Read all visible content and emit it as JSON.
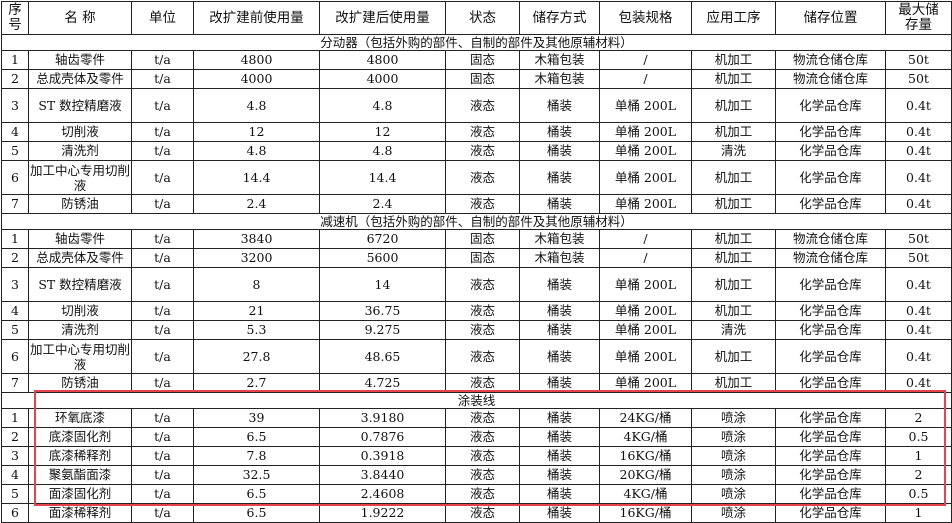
{
  "table": {
    "headers": [
      "序\n号",
      "名  称",
      "单位",
      "改扩建前使用量",
      "改扩建后使用量",
      "状态",
      "储存方式",
      "包装规格",
      "应用工序",
      "储存位置",
      "最大储\n存量"
    ],
    "sections": [
      {
        "title": "分动器（包括外购的部件、自制的部件及其他原辅材料）",
        "rows": [
          [
            "1",
            "轴齿零件",
            "t/a",
            "4800",
            "4800",
            "固态",
            "木箱包装",
            "/",
            "机加工",
            "物流仓储仓库",
            "50t"
          ],
          [
            "2",
            "总成壳体及零件",
            "t/a",
            "4000",
            "4000",
            "固态",
            "木箱包装",
            "/",
            "机加工",
            "物流仓储仓库",
            "50t"
          ],
          [
            "3",
            "ST 数控精磨液",
            "t/a",
            "4.8",
            "4.8",
            "液态",
            "桶装",
            "单桶 200L",
            "机加工",
            "化学品仓库",
            "0.4t"
          ],
          [
            "4",
            "切削液",
            "t/a",
            "12",
            "12",
            "液态",
            "桶装",
            "单桶 200L",
            "机加工",
            "化学品仓库",
            "0.4t"
          ],
          [
            "5",
            "清洗剂",
            "t/a",
            "4.8",
            "4.8",
            "液态",
            "桶装",
            "单桶 200L",
            "清洗",
            "化学品仓库",
            "0.4t"
          ],
          [
            "6",
            "加工中心专用切削液",
            "t/a",
            "14.4",
            "14.4",
            "液态",
            "桶装",
            "单桶 200L",
            "机加工",
            "化学品仓库",
            "0.4t"
          ],
          [
            "7",
            "防锈油",
            "t/a",
            "2.4",
            "2.4",
            "液态",
            "桶装",
            "单桶 200L",
            "机加工",
            "化学品仓库",
            "0.4t"
          ]
        ]
      },
      {
        "title": "减速机（包括外购的部件、自制的部件及其他原辅材料）",
        "rows": [
          [
            "1",
            "轴齿零件",
            "t/a",
            "3840",
            "6720",
            "固态",
            "木箱包装",
            "/",
            "机加工",
            "物流仓储仓库",
            "50t"
          ],
          [
            "2",
            "总成壳体及零件",
            "t/a",
            "3200",
            "5600",
            "固态",
            "木箱包装",
            "/",
            "机加工",
            "物流仓储仓库",
            "50t"
          ],
          [
            "3",
            "ST 数控精磨液",
            "t/a",
            "8",
            "14",
            "液态",
            "桶装",
            "单桶 200L",
            "机加工",
            "化学品仓库",
            "0.4t"
          ],
          [
            "4",
            "切削液",
            "t/a",
            "21",
            "36.75",
            "液态",
            "桶装",
            "单桶 200L",
            "机加工",
            "化学品仓库",
            "0.4t"
          ],
          [
            "5",
            "清洗剂",
            "t/a",
            "5.3",
            "9.275",
            "液态",
            "桶装",
            "单桶 200L",
            "清洗",
            "化学品仓库",
            "0.4t"
          ],
          [
            "6",
            "加工中心专用切削液",
            "t/a",
            "27.8",
            "48.65",
            "液态",
            "桶装",
            "单桶 200L",
            "机加工",
            "化学品仓库",
            "0.4t"
          ],
          [
            "7",
            "防锈油",
            "t/a",
            "2.7",
            "4.725",
            "液态",
            "桶装",
            "单桶 200L",
            "机加工",
            "化学品仓库",
            "0.4t"
          ]
        ]
      },
      {
        "title": "涂装线",
        "rows": [
          [
            "1",
            "环氧底漆",
            "t/a",
            "39",
            "3.9180",
            "液态",
            "桶装",
            "24KG/桶",
            "喷涂",
            "化学品仓库",
            "2"
          ],
          [
            "2",
            "底漆固化剂",
            "t/a",
            "6.5",
            "0.7876",
            "液态",
            "桶装",
            "4KG/桶",
            "喷涂",
            "化学品仓库",
            "0.5"
          ],
          [
            "3",
            "底漆稀释剂",
            "t/a",
            "7.8",
            "0.3918",
            "液态",
            "桶装",
            "16KG/桶",
            "喷涂",
            "化学品仓库",
            "1"
          ],
          [
            "4",
            "聚氨酯面漆",
            "t/a",
            "32.5",
            "3.8440",
            "液态",
            "桶装",
            "20KG/桶",
            "喷涂",
            "化学品仓库",
            "2"
          ],
          [
            "5",
            "面漆固化剂",
            "t/a",
            "6.5",
            "2.4608",
            "液态",
            "桶装",
            "4KG/桶",
            "喷涂",
            "化学品仓库",
            "0.5"
          ],
          [
            "6",
            "面漆稀释剂",
            "t/a",
            "6.5",
            "1.9222",
            "液态",
            "桶装",
            "16KG/桶",
            "喷涂",
            "化学品仓库",
            "1"
          ]
        ]
      }
    ]
  },
  "highlight_color": "#e8434d"
}
